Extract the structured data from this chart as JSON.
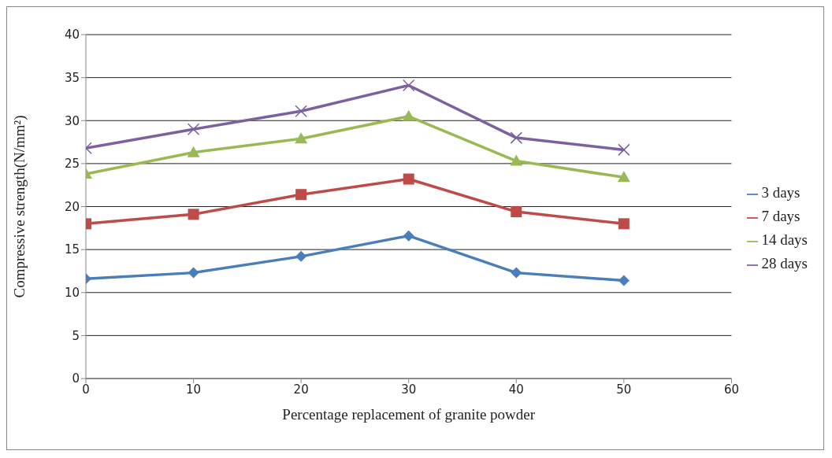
{
  "chart_data": {
    "type": "line",
    "xlabel": "Percentage replacement of granite powder",
    "ylabel": "Compressive strength(N/mm²)",
    "x": [
      0,
      10,
      20,
      30,
      40,
      50
    ],
    "series": [
      {
        "name": "3 days",
        "color": "#4a7ebb",
        "marker": "diamond",
        "values": [
          11.6,
          12.3,
          14.2,
          16.6,
          12.3,
          11.4
        ]
      },
      {
        "name": "7 days",
        "color": "#be4b48",
        "marker": "square",
        "values": [
          18.0,
          19.1,
          21.4,
          23.2,
          19.4,
          18.0
        ]
      },
      {
        "name": "14 days",
        "color": "#98b954",
        "marker": "triangle",
        "values": [
          23.8,
          26.3,
          27.9,
          30.5,
          25.3,
          23.4
        ]
      },
      {
        "name": "28 days",
        "color": "#7d60a0",
        "marker": "cross",
        "values": [
          26.8,
          29.0,
          31.1,
          34.1,
          28.0,
          26.6
        ]
      }
    ],
    "xlim": [
      0,
      60
    ],
    "xticks": [
      0,
      10,
      20,
      30,
      40,
      50,
      60
    ],
    "ylim": [
      0,
      40
    ],
    "yticks": [
      0,
      5,
      10,
      15,
      20,
      25,
      30,
      35,
      40
    ],
    "grid": "y",
    "legend": "right",
    "line_style": "solid"
  }
}
